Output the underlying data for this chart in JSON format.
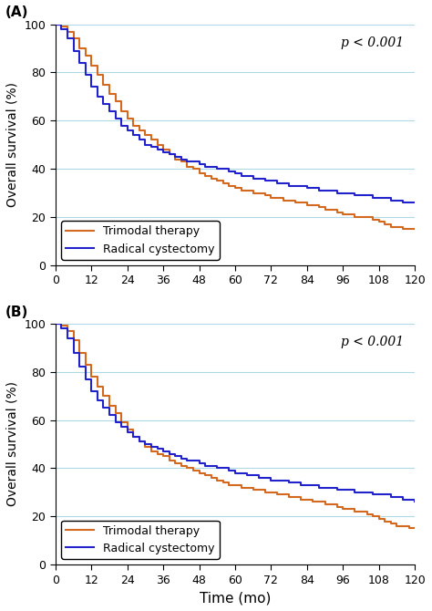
{
  "panel_A": {
    "label": "(A)",
    "p_value": "p < 0.001",
    "trimodal": {
      "x": [
        0,
        2,
        4,
        6,
        8,
        10,
        12,
        14,
        16,
        18,
        20,
        22,
        24,
        26,
        28,
        30,
        32,
        34,
        36,
        38,
        40,
        42,
        44,
        46,
        48,
        50,
        52,
        54,
        56,
        58,
        60,
        62,
        64,
        66,
        68,
        70,
        72,
        74,
        76,
        78,
        80,
        82,
        84,
        86,
        88,
        90,
        92,
        94,
        96,
        98,
        100,
        102,
        104,
        106,
        108,
        110,
        112,
        114,
        116,
        118,
        120
      ],
      "y": [
        100,
        99,
        97,
        94,
        90,
        87,
        83,
        79,
        75,
        71,
        68,
        64,
        61,
        58,
        56,
        54,
        52,
        50,
        48,
        46,
        44,
        43,
        41,
        40,
        38,
        37,
        36,
        35,
        34,
        33,
        32,
        31,
        31,
        30,
        30,
        29,
        28,
        28,
        27,
        27,
        26,
        26,
        25,
        25,
        24,
        23,
        23,
        22,
        21,
        21,
        20,
        20,
        20,
        19,
        18,
        17,
        16,
        16,
        15,
        15,
        15
      ]
    },
    "radical": {
      "x": [
        0,
        2,
        4,
        6,
        8,
        10,
        12,
        14,
        16,
        18,
        20,
        22,
        24,
        26,
        28,
        30,
        32,
        34,
        36,
        38,
        40,
        42,
        44,
        46,
        48,
        50,
        52,
        54,
        56,
        58,
        60,
        62,
        64,
        66,
        68,
        70,
        72,
        74,
        76,
        78,
        80,
        82,
        84,
        86,
        88,
        90,
        92,
        94,
        96,
        98,
        100,
        102,
        104,
        106,
        108,
        110,
        112,
        114,
        116,
        118,
        120
      ],
      "y": [
        100,
        98,
        94,
        89,
        84,
        79,
        74,
        70,
        67,
        64,
        61,
        58,
        56,
        54,
        52,
        50,
        49,
        48,
        47,
        46,
        45,
        44,
        43,
        43,
        42,
        41,
        41,
        40,
        40,
        39,
        38,
        37,
        37,
        36,
        36,
        35,
        35,
        34,
        34,
        33,
        33,
        33,
        32,
        32,
        31,
        31,
        31,
        30,
        30,
        30,
        29,
        29,
        29,
        28,
        28,
        28,
        27,
        27,
        26,
        26,
        26
      ]
    }
  },
  "panel_B": {
    "label": "(B)",
    "p_value": "p < 0.001",
    "trimodal": {
      "x": [
        0,
        2,
        4,
        6,
        8,
        10,
        12,
        14,
        16,
        18,
        20,
        22,
        24,
        26,
        28,
        30,
        32,
        34,
        36,
        38,
        40,
        42,
        44,
        46,
        48,
        50,
        52,
        54,
        56,
        58,
        60,
        62,
        64,
        66,
        68,
        70,
        72,
        74,
        76,
        78,
        80,
        82,
        84,
        86,
        88,
        90,
        92,
        94,
        96,
        98,
        100,
        102,
        104,
        106,
        108,
        110,
        112,
        114,
        116,
        118,
        120
      ],
      "y": [
        100,
        99,
        97,
        93,
        88,
        83,
        78,
        74,
        70,
        66,
        63,
        59,
        56,
        53,
        51,
        49,
        47,
        46,
        45,
        43,
        42,
        41,
        40,
        39,
        38,
        37,
        36,
        35,
        34,
        33,
        33,
        32,
        32,
        31,
        31,
        30,
        30,
        29,
        29,
        28,
        28,
        27,
        27,
        26,
        26,
        25,
        25,
        24,
        23,
        23,
        22,
        22,
        21,
        20,
        19,
        18,
        17,
        16,
        16,
        15,
        15
      ]
    },
    "radical": {
      "x": [
        0,
        2,
        4,
        6,
        8,
        10,
        12,
        14,
        16,
        18,
        20,
        22,
        24,
        26,
        28,
        30,
        32,
        34,
        36,
        38,
        40,
        42,
        44,
        46,
        48,
        50,
        52,
        54,
        56,
        58,
        60,
        62,
        64,
        66,
        68,
        70,
        72,
        74,
        76,
        78,
        80,
        82,
        84,
        86,
        88,
        90,
        92,
        94,
        96,
        98,
        100,
        102,
        104,
        106,
        108,
        110,
        112,
        114,
        116,
        118,
        120
      ],
      "y": [
        100,
        98,
        94,
        88,
        82,
        77,
        72,
        68,
        65,
        62,
        59,
        57,
        55,
        53,
        51,
        50,
        49,
        48,
        47,
        46,
        45,
        44,
        43,
        43,
        42,
        41,
        41,
        40,
        40,
        39,
        38,
        38,
        37,
        37,
        36,
        36,
        35,
        35,
        35,
        34,
        34,
        33,
        33,
        33,
        32,
        32,
        32,
        31,
        31,
        31,
        30,
        30,
        30,
        29,
        29,
        29,
        28,
        28,
        27,
        27,
        26
      ]
    }
  },
  "trimodal_color": "#D2691E",
  "radical_color": "#2222CC",
  "ylabel": "Overall survival (%)",
  "xlabel": "Time (mo)",
  "xlim": [
    0,
    120
  ],
  "ylim": [
    0,
    100
  ],
  "xticks": [
    0,
    12,
    24,
    36,
    48,
    60,
    72,
    84,
    96,
    108,
    120
  ],
  "yticks": [
    0,
    20,
    40,
    60,
    80,
    100
  ],
  "grid_color": "#ADD8E6",
  "legend_labels": [
    "Trimodal therapy",
    "Radical cystectomy"
  ],
  "trimodal_label": "Trimodal therapy",
  "radical_label": "Radical cystectomy",
  "background_color": "#ffffff",
  "line_width": 1.5
}
